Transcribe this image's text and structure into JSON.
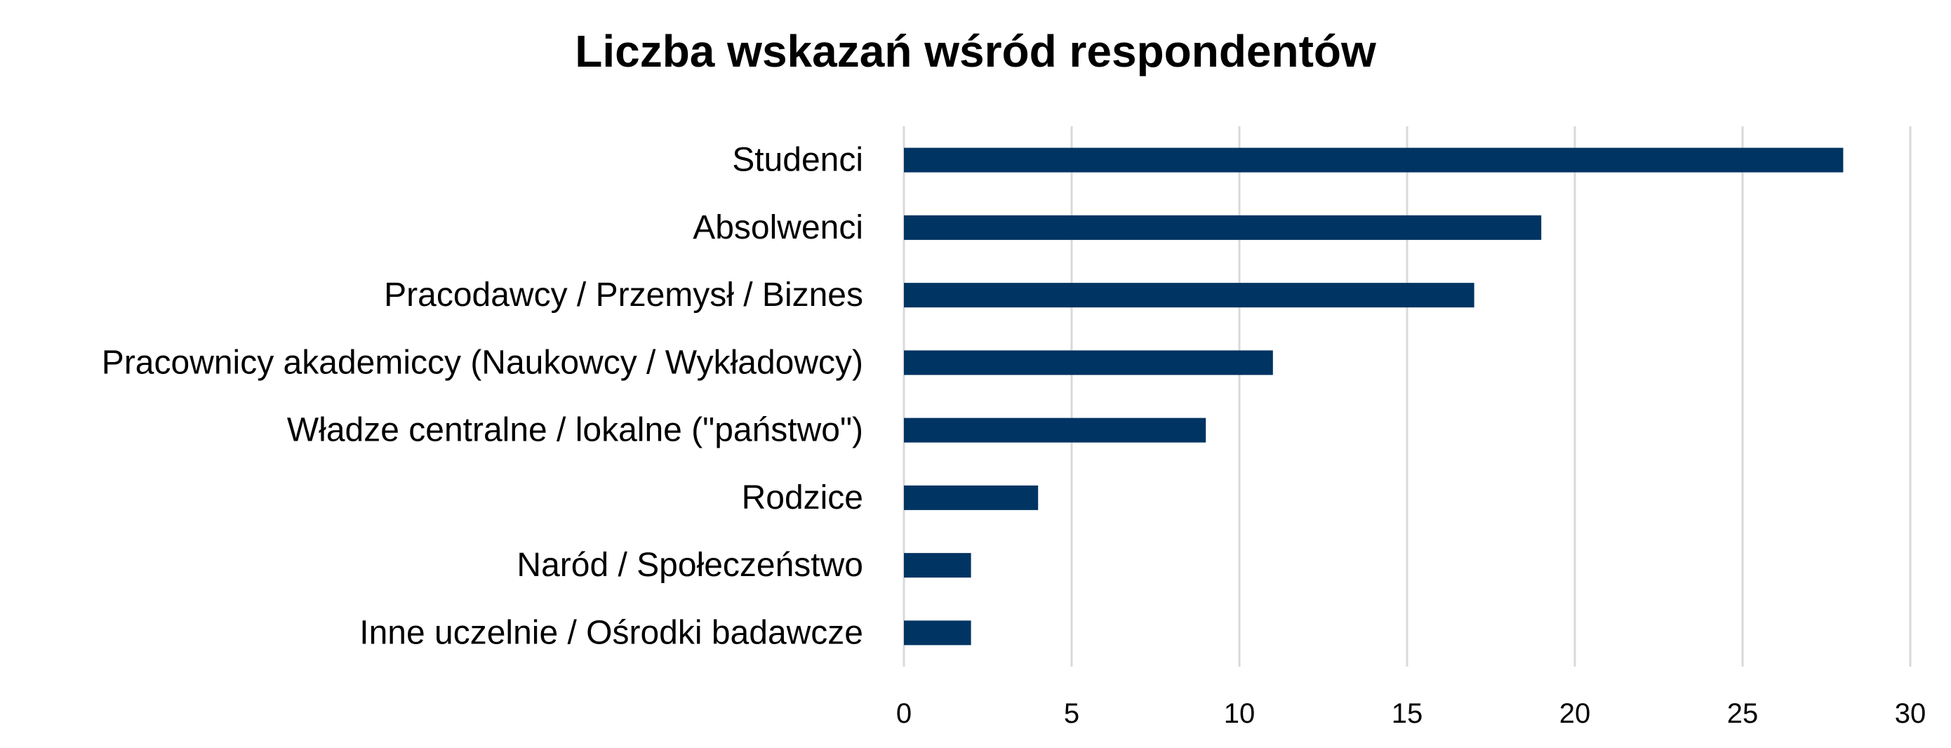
{
  "chart_data": {
    "type": "bar",
    "orientation": "horizontal",
    "title": "Liczba wskazań wśród respondentów",
    "xlabel": "",
    "ylabel": "",
    "categories": [
      "Studenci",
      "Absolwenci",
      "Pracodawcy / Przemysł / Biznes",
      "Pracownicy akademiccy (Naukowcy / Wykładowcy)",
      "Władze centralne / lokalne (\"państwo\")",
      "Rodzice",
      "Naród / Społeczeństwo",
      "Inne uczelnie / Ośrodki badawcze"
    ],
    "values": [
      28,
      19,
      17,
      11,
      9,
      4,
      2,
      2
    ],
    "xlim": [
      0,
      30
    ],
    "xticks": [
      "0",
      "5",
      "10",
      "15",
      "20",
      "25",
      "30"
    ],
    "grid": true,
    "legend": "none",
    "bar_color": "#003462",
    "grid_color": "#d9d9d9"
  }
}
